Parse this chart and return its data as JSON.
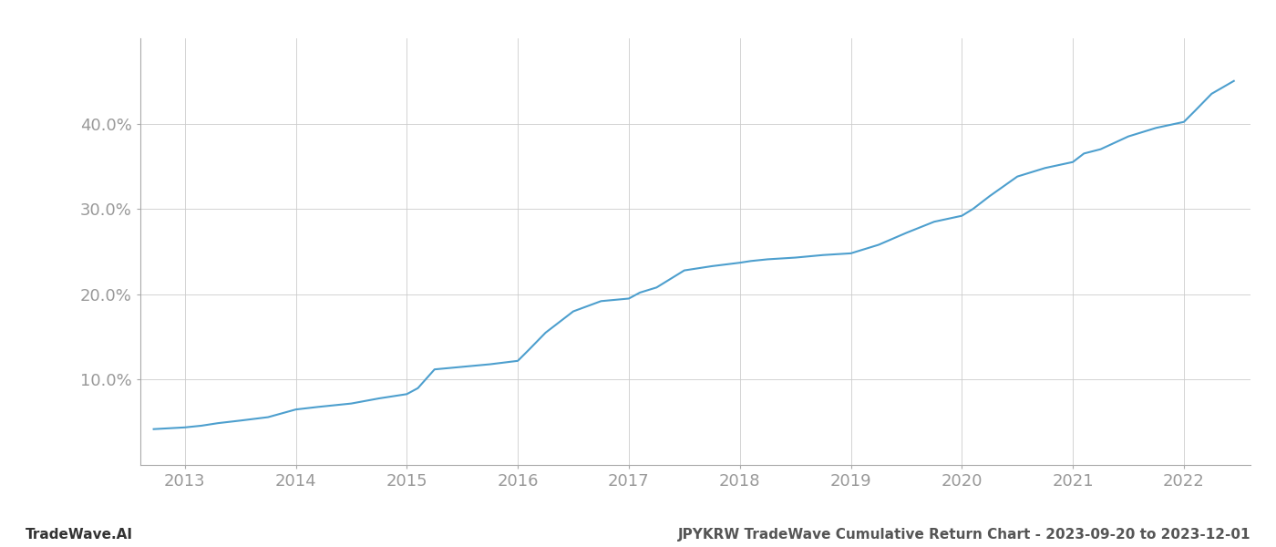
{
  "title": "JPYKRW TradeWave Cumulative Return Chart - 2023-09-20 to 2023-12-01",
  "watermark": "TradeWave.AI",
  "line_color": "#4d9fce",
  "background_color": "#ffffff",
  "grid_color": "#cccccc",
  "x_years": [
    2013,
    2014,
    2015,
    2016,
    2017,
    2018,
    2019,
    2020,
    2021,
    2022
  ],
  "x_data": [
    2012.72,
    2013.0,
    2013.15,
    2013.3,
    2013.5,
    2013.75,
    2014.0,
    2014.2,
    2014.5,
    2014.75,
    2015.0,
    2015.1,
    2015.25,
    2015.5,
    2015.75,
    2016.0,
    2016.1,
    2016.25,
    2016.5,
    2016.75,
    2017.0,
    2017.1,
    2017.25,
    2017.5,
    2017.75,
    2018.0,
    2018.1,
    2018.25,
    2018.5,
    2018.75,
    2019.0,
    2019.1,
    2019.25,
    2019.5,
    2019.75,
    2020.0,
    2020.1,
    2020.25,
    2020.5,
    2020.75,
    2021.0,
    2021.1,
    2021.25,
    2021.5,
    2021.75,
    2022.0,
    2022.1,
    2022.25,
    2022.45
  ],
  "y_data": [
    4.2,
    4.4,
    4.6,
    4.9,
    5.2,
    5.6,
    6.5,
    6.8,
    7.2,
    7.8,
    8.3,
    9.0,
    11.2,
    11.5,
    11.8,
    12.2,
    13.5,
    15.5,
    18.0,
    19.2,
    19.5,
    20.2,
    20.8,
    22.8,
    23.3,
    23.7,
    23.9,
    24.1,
    24.3,
    24.6,
    24.8,
    25.2,
    25.8,
    27.2,
    28.5,
    29.2,
    30.0,
    31.5,
    33.8,
    34.8,
    35.5,
    36.5,
    37.0,
    38.5,
    39.5,
    40.2,
    41.5,
    43.5,
    45.0
  ],
  "yticks": [
    10.0,
    20.0,
    30.0,
    40.0
  ],
  "ylim": [
    0,
    50
  ],
  "xlim": [
    2012.6,
    2022.6
  ],
  "tick_label_color": "#999999",
  "tick_fontsize": 13,
  "footer_fontsize": 11,
  "title_fontsize": 11,
  "line_width": 1.5
}
